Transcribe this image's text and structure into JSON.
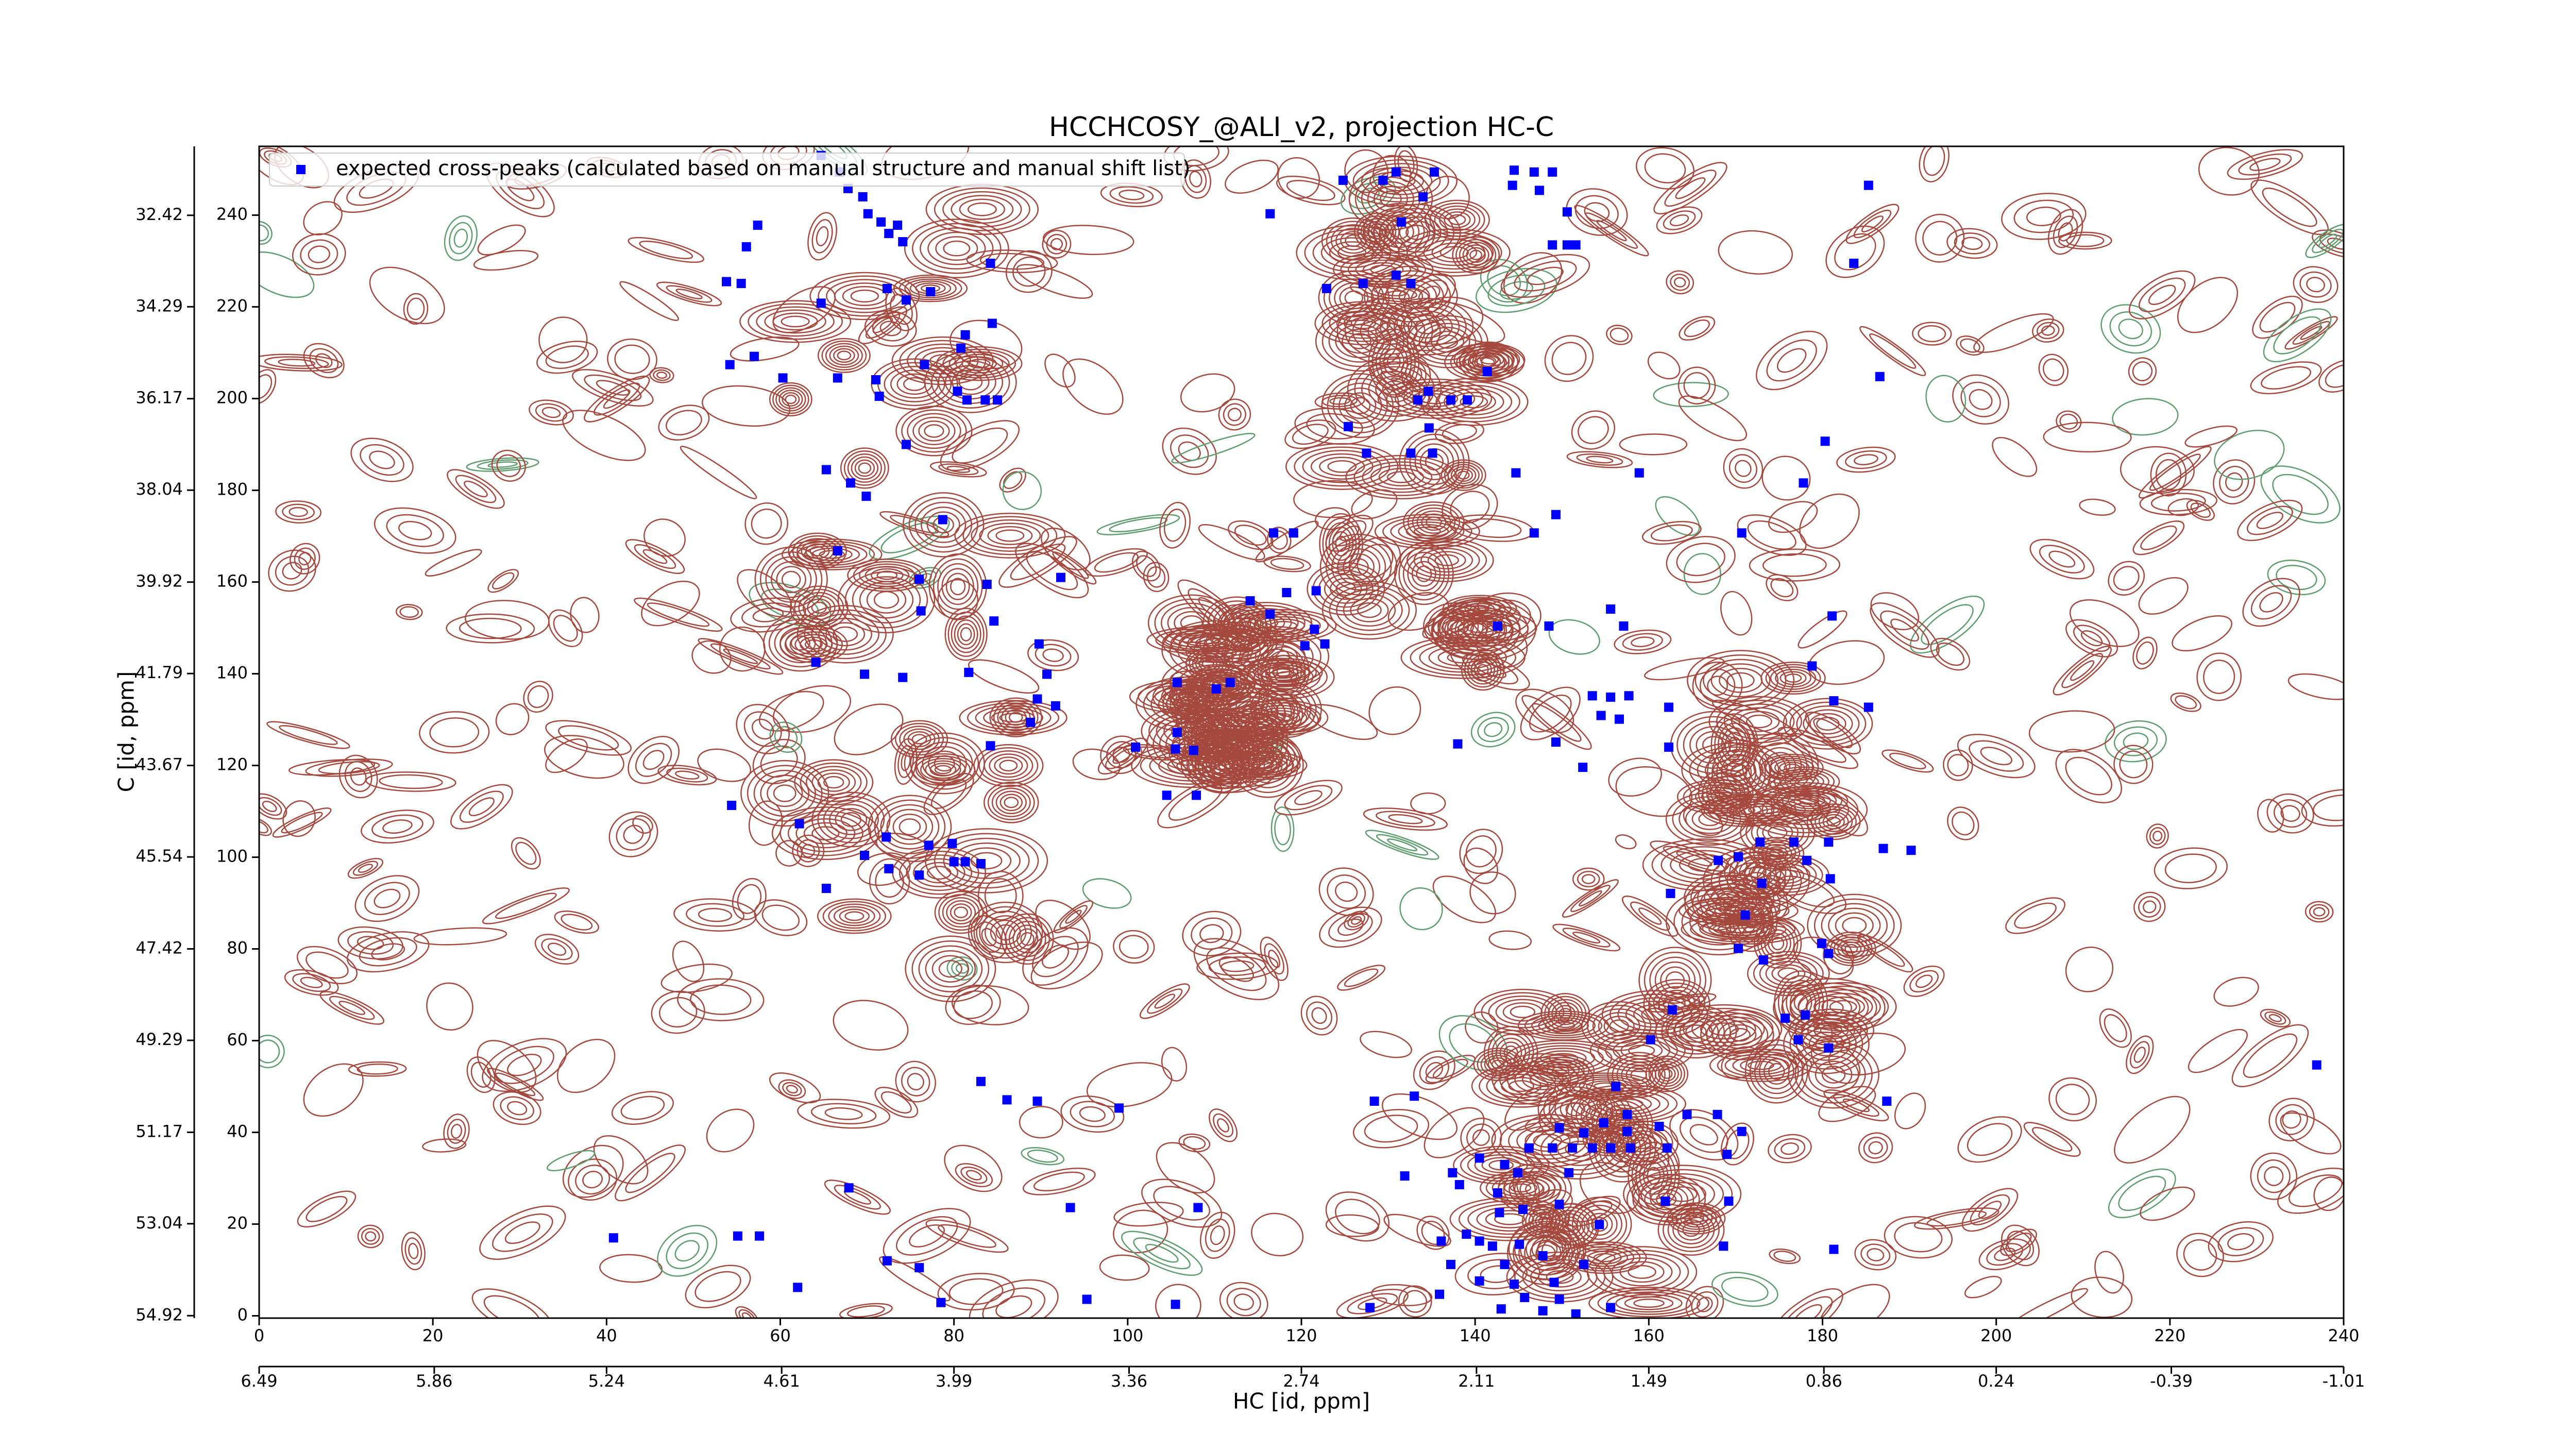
{
  "chart_data": {
    "type": "scatter",
    "title": "HCCHCOSY_@ALI_v2, projection HC-C",
    "xlabel": "HC [id, ppm]",
    "ylabel": "C [id, ppm]",
    "legend": "upper left",
    "xlim": [
      0,
      240
    ],
    "xticks": [
      0,
      20,
      40,
      60,
      80,
      100,
      120,
      140,
      160,
      180,
      200,
      220,
      240
    ],
    "ylim": [
      -0.5,
      255
    ],
    "yticks": [
      0,
      20,
      40,
      60,
      80,
      100,
      120,
      140,
      160,
      180,
      200,
      220,
      240
    ],
    "x2lim": [
      6.49,
      -1.01
    ],
    "x2ticks": [
      6.49,
      5.86,
      5.24,
      4.61,
      3.99,
      3.36,
      2.74,
      2.11,
      1.49,
      0.86,
      0.24,
      -0.39,
      -1.01
    ],
    "y2lim": [
      54.97,
      31.01
    ],
    "y2ticks": [
      54.92,
      53.04,
      51.17,
      49.29,
      47.42,
      45.54,
      43.67,
      41.79,
      39.92,
      38.04,
      36.17,
      34.29,
      32.42
    ],
    "series": [
      {
        "name": "expected cross-peaks (calculated based on manual structure and manual shift list)",
        "color": "#0000ff",
        "x": [
          64.7,
          66.8,
          67.8,
          69.5,
          70.1,
          71.6,
          73.5,
          72.5,
          74.1,
          57.4,
          56.1,
          53.8,
          55.5,
          72.3,
          74.5,
          77.3,
          84.2,
          64.7,
          60.3,
          54.2,
          57.0,
          66.6,
          71.0,
          71.4,
          76.6,
          80.8,
          81.3,
          84.4,
          80.4,
          81.5,
          83.6,
          85.0,
          74.5,
          65.3,
          68.1,
          69.9,
          78.7,
          66.6,
          76.0,
          83.8,
          92.3,
          76.2,
          84.6,
          89.8,
          81.7,
          90.7,
          89.6,
          91.7,
          88.8,
          84.2,
          69.7,
          74.1,
          64.1,
          54.4,
          62.2,
          72.2,
          69.7,
          72.5,
          77.1,
          79.8,
          80.0,
          81.3,
          83.1,
          76.0,
          65.3,
          83.1,
          86.1,
          89.6,
          99.0,
          67.9,
          93.4,
          108.1,
          40.8,
          55.1,
          57.6,
          62.0,
          72.3,
          76.0,
          78.5,
          95.3,
          105.5,
          100.9,
          105.5,
          107.6,
          105.7,
          104.5,
          107.9,
          110.2,
          105.7,
          111.8,
          114.1,
          116.4,
          121.7,
          118.3,
          121.5,
          120.4,
          122.7,
          116.8,
          119.1,
          116.4,
          122.9,
          124.8,
          129.4,
          130.9,
          135.3,
          134.0,
          131.5,
          127.1,
          130.9,
          132.6,
          133.4,
          134.6,
          137.2,
          139.1,
          141.4,
          134.7,
          132.6,
          135.1,
          125.4,
          127.5,
          144.5,
          146.8,
          147.4,
          148.9,
          144.3,
          150.6,
          148.9,
          150.6,
          151.6,
          149.3,
          146.8,
          144.7,
          158.9,
          177.8,
          170.7,
          180.3,
          183.6,
          185.3,
          186.6,
          142.6,
          148.5,
          155.6,
          157.1,
          153.5,
          155.6,
          154.5,
          156.6,
          157.7,
          162.3,
          162.3,
          152.4,
          138.0,
          149.3,
          181.1,
          178.8,
          181.3,
          185.3,
          168.0,
          170.3,
          172.8,
          176.7,
          180.7,
          180.9,
          178.2,
          162.5,
          173.0,
          171.1,
          170.3,
          173.2,
          179.9,
          180.7,
          162.7,
          160.2,
          175.7,
          178.0,
          180.7,
          177.2,
          187.4,
          190.2,
          187.0,
          236.9,
          156.2,
          157.5,
          154.8,
          133.0,
          128.4,
          149.7,
          152.5,
          157.5,
          161.2,
          164.4,
          167.9,
          170.7,
          146.2,
          148.9,
          151.2,
          153.5,
          155.6,
          157.9,
          162.1,
          169.0,
          140.5,
          143.4,
          137.4,
          138.2,
          144.9,
          150.8,
          142.6,
          142.8,
          145.5,
          149.7,
          154.3,
          161.9,
          169.2,
          168.6,
          181.3,
          131.9,
          139.0,
          140.5,
          142.0,
          145.1,
          136.1,
          137.2,
          143.4,
          147.8,
          149.1,
          144.5,
          140.5,
          135.9,
          152.5,
          145.7,
          149.7,
          155.6,
          127.9,
          143.0,
          147.8,
          151.6
        ],
        "values": [
          253.0,
          249.4,
          245.8,
          244.0,
          240.3,
          238.5,
          237.8,
          236.0,
          234.2,
          237.8,
          233.1,
          225.5,
          225.1,
          224.0,
          221.5,
          223.3,
          229.5,
          220.8,
          204.5,
          207.4,
          209.2,
          204.5,
          204.1,
          200.5,
          207.4,
          211.0,
          213.9,
          216.4,
          201.6,
          199.7,
          199.7,
          199.7,
          190.0,
          184.5,
          181.6,
          178.7,
          173.6,
          166.8,
          160.6,
          159.5,
          161.0,
          153.7,
          151.5,
          146.5,
          140.3,
          139.9,
          134.5,
          133.0,
          129.4,
          124.3,
          139.9,
          139.2,
          142.5,
          111.3,
          107.3,
          104.4,
          100.4,
          97.5,
          102.6,
          103.0,
          99.0,
          99.0,
          98.6,
          96.1,
          93.2,
          51.1,
          47.1,
          46.8,
          45.3,
          27.9,
          23.6,
          23.6,
          17.0,
          17.4,
          17.4,
          6.2,
          12.0,
          10.5,
          2.9,
          3.6,
          2.5,
          124.0,
          123.6,
          123.3,
          127.2,
          113.5,
          113.5,
          136.7,
          138.1,
          138.1,
          155.9,
          153.0,
          158.1,
          157.7,
          149.7,
          146.1,
          146.5,
          170.7,
          170.7,
          240.3,
          224.0,
          247.6,
          247.6,
          249.4,
          249.4,
          244.0,
          238.5,
          225.1,
          226.9,
          225.1,
          199.7,
          201.6,
          199.7,
          199.7,
          205.9,
          193.6,
          188.1,
          188.1,
          193.9,
          188.1,
          249.8,
          249.4,
          245.4,
          249.4,
          246.5,
          240.7,
          233.5,
          233.5,
          233.5,
          174.7,
          170.7,
          183.8,
          183.8,
          181.6,
          170.7,
          190.7,
          229.5,
          246.5,
          204.8,
          150.4,
          150.4,
          154.1,
          150.4,
          135.2,
          134.9,
          130.9,
          130.1,
          135.2,
          132.7,
          124.0,
          119.6,
          124.7,
          125.1,
          152.6,
          141.7,
          134.1,
          132.7,
          99.3,
          100.1,
          103.3,
          103.3,
          103.3,
          95.3,
          99.3,
          92.1,
          94.3,
          87.4,
          80.1,
          77.6,
          81.2,
          79.0,
          66.7,
          60.2,
          64.9,
          65.6,
          58.4,
          60.2,
          46.8,
          101.5,
          101.9,
          54.7,
          50.0,
          43.9,
          42.1,
          47.9,
          46.8,
          41.0,
          39.9,
          40.2,
          41.3,
          43.9,
          43.9,
          40.2,
          36.6,
          36.6,
          36.6,
          36.6,
          36.6,
          36.6,
          36.6,
          35.2,
          34.4,
          33.0,
          31.2,
          28.6,
          31.2,
          31.2,
          26.8,
          22.5,
          23.2,
          24.3,
          19.9,
          25.0,
          25.0,
          15.2,
          14.5,
          30.5,
          17.8,
          16.3,
          15.2,
          15.6,
          16.3,
          11.2,
          11.2,
          13.1,
          7.3,
          6.9,
          7.6,
          4.7,
          11.2,
          4.0,
          3.6,
          1.8,
          1.8,
          1.5,
          1.1,
          0.4
        ]
      }
    ]
  }
}
